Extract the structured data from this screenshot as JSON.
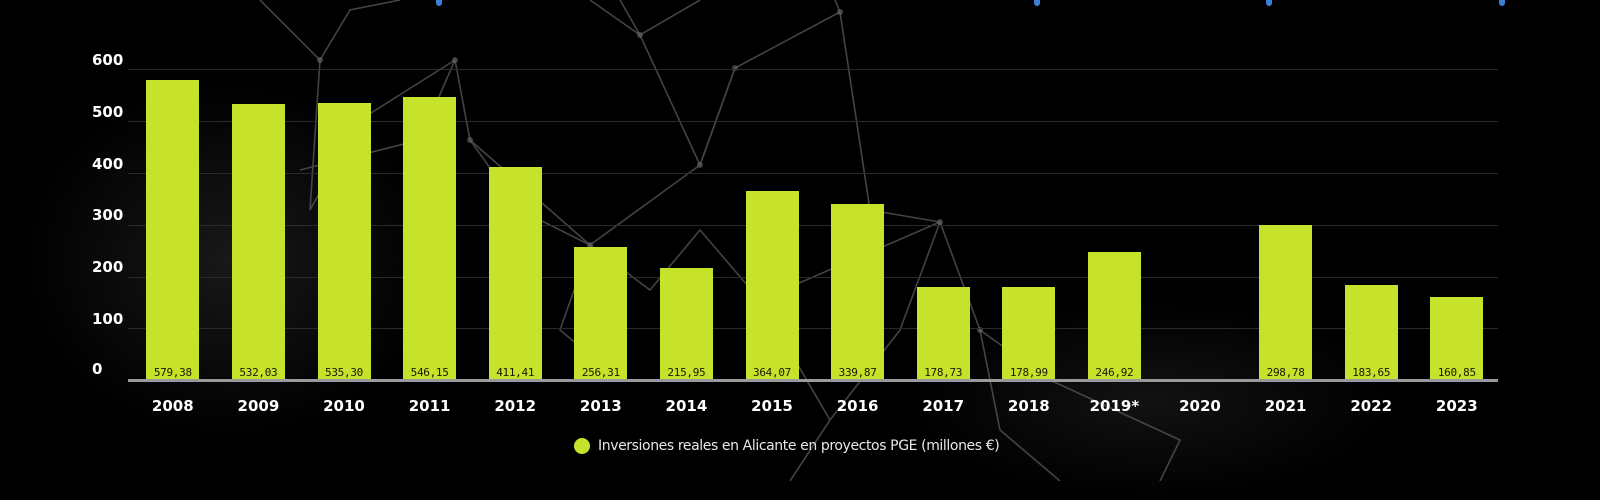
{
  "chart_data": {
    "type": "bar",
    "title": "",
    "xlabel": "",
    "ylabel": "",
    "ylim": [
      0,
      600
    ],
    "yticks": [
      0,
      100,
      200,
      300,
      400,
      500,
      600
    ],
    "grid": true,
    "legend_position": "bottom",
    "categories": [
      "2008",
      "2009",
      "2010",
      "2011",
      "2012",
      "2013",
      "2014",
      "2015",
      "2016",
      "2017",
      "2018",
      "2019*",
      "2020",
      "2021",
      "2022",
      "2023"
    ],
    "series": [
      {
        "name": "Inversiones reales en Alicante en proyectos PGE (millones €)",
        "color": "#c6e22b",
        "values": [
          579.38,
          532.03,
          535.3,
          546.15,
          411.41,
          256.31,
          215.95,
          364.07,
          339.87,
          178.73,
          178.99,
          246.92,
          null,
          298.78,
          183.65,
          160.85
        ],
        "labels": [
          "579,38",
          "532,03",
          "535,30",
          "546,15",
          "411,41",
          "256,31",
          "215,95",
          "364,07",
          "339,87",
          "178,73",
          "178,99",
          "246,92",
          "",
          "298,78",
          "183,65",
          "160,85"
        ]
      }
    ]
  },
  "legend": {
    "label": "Inversiones reales en Alicante en proyectos PGE (millones €)"
  },
  "colors": {
    "bar": "#c6e22b",
    "background": "#000000",
    "grid": "#2a2a2a",
    "axis": "#9a9a9a"
  }
}
